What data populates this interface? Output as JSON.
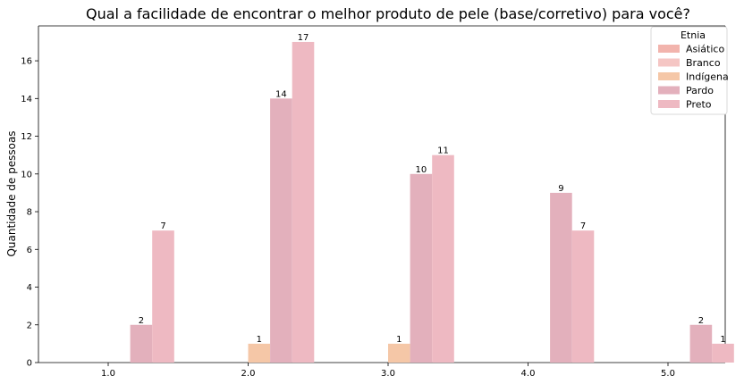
{
  "chart_data": {
    "type": "bar",
    "title": "Qual a facilidade de encontrar o melhor produto de pele (base/corretivo) para você?",
    "xlabel": "",
    "ylabel": "Quantidade de pessoas",
    "categories": [
      "1.0",
      "2.0",
      "3.0",
      "4.0",
      "5.0"
    ],
    "ylim": [
      0,
      17.85
    ],
    "yticks": [
      0,
      2,
      4,
      6,
      8,
      10,
      12,
      14,
      16
    ],
    "legend": {
      "title": "Etnia",
      "placement": "top-right"
    },
    "series": [
      {
        "name": "Asiático",
        "color": "#f2b4ad",
        "values": [
          0,
          0,
          0,
          0,
          0
        ]
      },
      {
        "name": "Branco",
        "color": "#f5c6c4",
        "values": [
          0,
          0,
          0,
          0,
          0
        ]
      },
      {
        "name": "Indígena",
        "color": "#f5c7a7",
        "values": [
          0,
          1,
          1,
          0,
          0
        ]
      },
      {
        "name": "Pardo",
        "color": "#e3b0bc",
        "values": [
          2,
          14,
          10,
          9,
          2
        ]
      },
      {
        "name": "Preto",
        "color": "#eeb9c2",
        "values": [
          7,
          17,
          11,
          7,
          1
        ]
      }
    ],
    "grid": false
  }
}
